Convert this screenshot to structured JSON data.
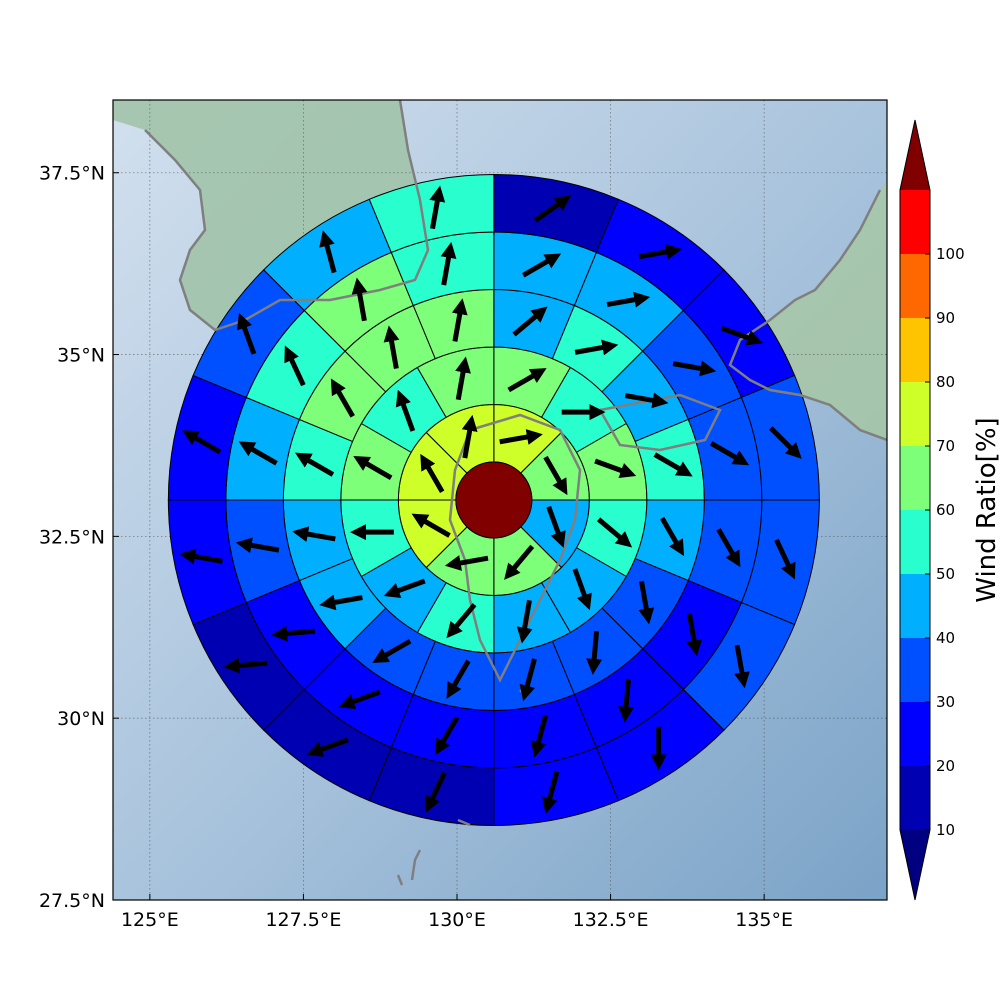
{
  "chart_data": {
    "type": "heatmap",
    "subtype": "polar sector wind-ratio map with wind direction vectors over a shaded-relief map",
    "x_ticks": [
      "125°E",
      "127.5°E",
      "130°E",
      "132.5°E",
      "135°E"
    ],
    "y_ticks": [
      "37.5°N",
      "35°N",
      "32.5°N",
      "30°N",
      "27.5°N"
    ],
    "x_tick_values": [
      125,
      127.5,
      130,
      132.5,
      135
    ],
    "y_tick_values": [
      37.5,
      35,
      32.5,
      30,
      27.5
    ],
    "xlim": [
      124.4,
      137.0
    ],
    "ylim": [
      27.5,
      38.5
    ],
    "grid": "dotted",
    "colorbar": {
      "title": "Wind Ratio[%]",
      "ticks": [
        "10",
        "20",
        "30",
        "40",
        "50",
        "60",
        "70",
        "80",
        "90",
        "100"
      ],
      "levels": [
        10,
        20,
        30,
        40,
        50,
        60,
        70,
        80,
        90,
        100
      ],
      "colors": [
        "#0000b3",
        "#0000ff",
        "#0050ff",
        "#00b0ff",
        "#29ffce",
        "#7dff7a",
        "#ceff29",
        "#ffc400",
        "#ff6800",
        "#ff0000"
      ],
      "under_color": "#000080",
      "over_color": "#800000",
      "extend": "both",
      "position": "right"
    },
    "center": {
      "lon": 130.6,
      "lat": 33.0,
      "ratio_class": "over-100"
    },
    "radial_unit": "ring index (1 = innermost)",
    "sectors_per_ring": [
      8,
      12,
      16,
      16,
      16
    ],
    "rings": [
      {
        "ring": 1,
        "values": [
          70,
          60,
          40,
          60,
          60,
          70,
          70,
          70
        ]
      },
      {
        "ring": 2,
        "values": [
          60,
          50,
          60,
          50,
          40,
          40,
          50,
          40,
          50,
          60,
          50,
          60
        ]
      },
      {
        "ring": 3,
        "values": [
          40,
          50,
          40,
          50,
          40,
          30,
          30,
          30,
          30,
          30,
          40,
          40,
          50,
          60,
          60,
          60
        ]
      },
      {
        "ring": 4,
        "values": [
          40,
          40,
          30,
          30,
          30,
          20,
          20,
          20,
          20,
          20,
          20,
          30,
          40,
          50,
          60,
          50
        ]
      },
      {
        "ring": 5,
        "values": [
          10,
          20,
          20,
          30,
          30,
          30,
          20,
          20,
          10,
          10,
          10,
          20,
          20,
          30,
          40,
          50
        ]
      }
    ],
    "wind_direction_deg_per_ring": [
      [
        80,
        150,
        160,
        220,
        260,
        300,
        330,
        10
      ],
      [
        60,
        90,
        110,
        130,
        160,
        190,
        220,
        250,
        270,
        300,
        340,
        10
      ],
      [
        50,
        80,
        100,
        120,
        150,
        170,
        185,
        195,
        210,
        240,
        260,
        280,
        300,
        330,
        350,
        10
      ],
      [
        60,
        80,
        100,
        120,
        150,
        170,
        185,
        195,
        210,
        250,
        265,
        280,
        300,
        335,
        350,
        10
      ],
      [
        55,
        80,
        110,
        135,
        155,
        170,
        180,
        195,
        205,
        250,
        265,
        280,
        300,
        340,
        345,
        10
      ]
    ]
  }
}
